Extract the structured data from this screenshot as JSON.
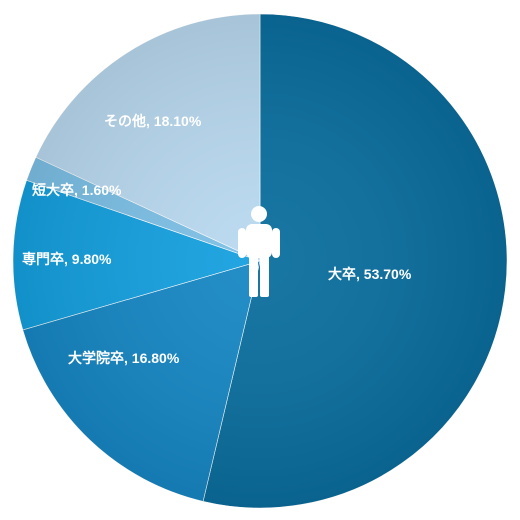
{
  "chart_data": {
    "type": "pie",
    "title": "",
    "start_angle_deg": 0,
    "direction": "clockwise",
    "slices": [
      {
        "label": "大卒, 53.70%",
        "category": "大卒",
        "value": 53.7,
        "color": "#0a6e9e"
      },
      {
        "label": "大学院卒, 16.80%",
        "category": "大学院卒",
        "value": 16.8,
        "color": "#1687c4"
      },
      {
        "label": "専門卒, 9.80%",
        "category": "専門卒",
        "value": 9.8,
        "color": "#14a0df"
      },
      {
        "label": "短大卒, 1.60%",
        "category": "短大卒",
        "value": 1.6,
        "color": "#7cc0e6"
      },
      {
        "label": "その他, 18.10%",
        "category": "その他",
        "value": 18.1,
        "color": "#b9d9f0"
      }
    ],
    "legend": "none",
    "center_icon": "person-icon"
  }
}
